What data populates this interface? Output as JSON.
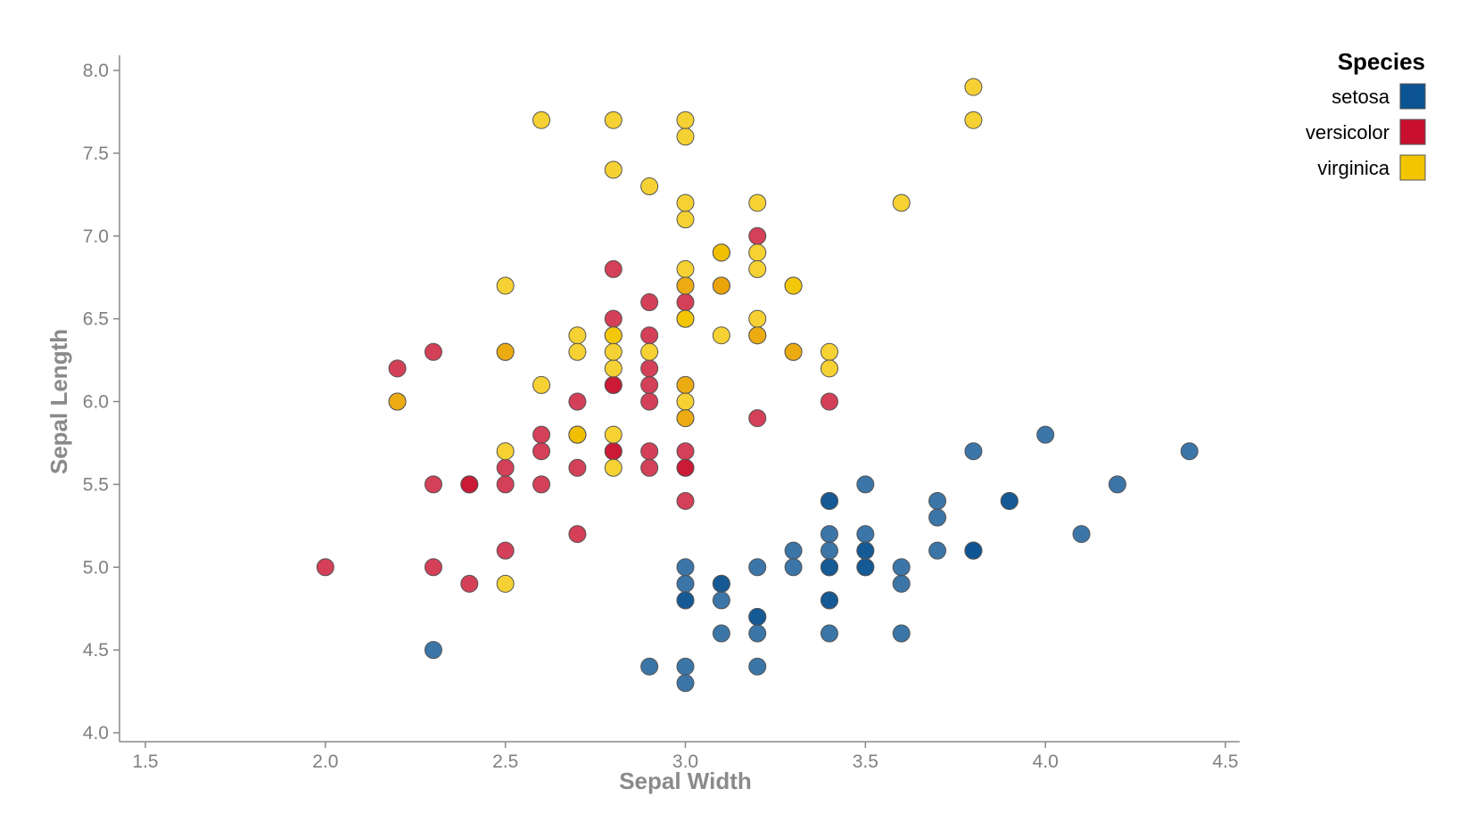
{
  "chart_data": {
    "type": "scatter",
    "title": "",
    "xlabel": "Sepal Width",
    "ylabel": "Sepal Length",
    "xlim": [
      1.5,
      4.5
    ],
    "ylim": [
      4.0,
      8.0
    ],
    "xticks": [
      "1.5",
      "2.0",
      "2.5",
      "3.0",
      "3.5",
      "4.0",
      "4.5"
    ],
    "yticks": [
      "4.0",
      "4.5",
      "5.0",
      "5.5",
      "6.0",
      "6.5",
      "7.0",
      "7.5",
      "8.0"
    ],
    "grid": false,
    "legend": {
      "title": "Species",
      "position": "top-right"
    },
    "series": [
      {
        "name": "setosa",
        "color": "#0b5391",
        "points": [
          [
            3.5,
            5.1
          ],
          [
            3.0,
            4.9
          ],
          [
            3.2,
            4.7
          ],
          [
            3.1,
            4.6
          ],
          [
            3.6,
            5.0
          ],
          [
            3.9,
            5.4
          ],
          [
            3.4,
            4.6
          ],
          [
            3.4,
            5.0
          ],
          [
            2.9,
            4.4
          ],
          [
            3.1,
            4.9
          ],
          [
            3.7,
            5.4
          ],
          [
            3.4,
            4.8
          ],
          [
            3.0,
            4.8
          ],
          [
            3.0,
            4.3
          ],
          [
            4.0,
            5.8
          ],
          [
            4.4,
            5.7
          ],
          [
            3.9,
            5.4
          ],
          [
            3.5,
            5.1
          ],
          [
            3.8,
            5.7
          ],
          [
            3.8,
            5.1
          ],
          [
            3.4,
            5.4
          ],
          [
            3.7,
            5.1
          ],
          [
            3.6,
            4.6
          ],
          [
            3.3,
            5.1
          ],
          [
            3.4,
            4.8
          ],
          [
            3.0,
            5.0
          ],
          [
            3.4,
            5.0
          ],
          [
            3.5,
            5.2
          ],
          [
            3.4,
            5.2
          ],
          [
            3.2,
            4.7
          ],
          [
            3.1,
            4.8
          ],
          [
            3.4,
            5.4
          ],
          [
            4.1,
            5.2
          ],
          [
            4.2,
            5.5
          ],
          [
            3.1,
            4.9
          ],
          [
            3.2,
            5.0
          ],
          [
            3.5,
            5.5
          ],
          [
            3.6,
            4.9
          ],
          [
            3.0,
            4.4
          ],
          [
            3.4,
            5.1
          ],
          [
            3.5,
            5.0
          ],
          [
            2.3,
            4.5
          ],
          [
            3.2,
            4.4
          ],
          [
            3.5,
            5.0
          ],
          [
            3.8,
            5.1
          ],
          [
            3.0,
            4.8
          ],
          [
            3.8,
            5.1
          ],
          [
            3.2,
            4.6
          ],
          [
            3.7,
            5.3
          ],
          [
            3.3,
            5.0
          ]
        ]
      },
      {
        "name": "versicolor",
        "color": "#c8102e",
        "points": [
          [
            3.2,
            7.0
          ],
          [
            3.2,
            6.4
          ],
          [
            3.1,
            6.9
          ],
          [
            2.3,
            5.5
          ],
          [
            2.8,
            6.5
          ],
          [
            2.8,
            5.7
          ],
          [
            3.3,
            6.3
          ],
          [
            2.4,
            4.9
          ],
          [
            2.9,
            6.6
          ],
          [
            2.7,
            5.2
          ],
          [
            2.0,
            5.0
          ],
          [
            3.0,
            5.9
          ],
          [
            2.2,
            6.0
          ],
          [
            2.9,
            6.1
          ],
          [
            2.9,
            5.6
          ],
          [
            3.1,
            6.7
          ],
          [
            3.0,
            5.6
          ],
          [
            2.7,
            5.8
          ],
          [
            2.2,
            6.2
          ],
          [
            2.5,
            5.6
          ],
          [
            3.2,
            5.9
          ],
          [
            2.8,
            6.1
          ],
          [
            2.5,
            6.3
          ],
          [
            2.8,
            6.1
          ],
          [
            2.9,
            6.4
          ],
          [
            3.0,
            6.6
          ],
          [
            2.8,
            6.8
          ],
          [
            3.0,
            6.7
          ],
          [
            2.9,
            6.0
          ],
          [
            2.6,
            5.7
          ],
          [
            2.4,
            5.5
          ],
          [
            2.4,
            5.5
          ],
          [
            2.7,
            5.8
          ],
          [
            2.7,
            6.0
          ],
          [
            3.0,
            5.4
          ],
          [
            3.4,
            6.0
          ],
          [
            3.1,
            6.7
          ],
          [
            2.3,
            6.3
          ],
          [
            3.0,
            5.6
          ],
          [
            2.5,
            5.5
          ],
          [
            2.6,
            5.5
          ],
          [
            3.0,
            6.1
          ],
          [
            2.6,
            5.8
          ],
          [
            2.3,
            5.0
          ],
          [
            2.7,
            5.6
          ],
          [
            3.0,
            5.7
          ],
          [
            2.9,
            5.7
          ],
          [
            2.9,
            6.2
          ],
          [
            2.5,
            5.1
          ],
          [
            2.8,
            5.7
          ]
        ]
      },
      {
        "name": "virginica",
        "color": "#f2c500",
        "points": [
          [
            3.3,
            6.3
          ],
          [
            2.7,
            5.8
          ],
          [
            3.0,
            7.1
          ],
          [
            2.9,
            6.3
          ],
          [
            3.0,
            6.5
          ],
          [
            3.0,
            7.6
          ],
          [
            2.5,
            4.9
          ],
          [
            2.9,
            7.3
          ],
          [
            2.5,
            6.7
          ],
          [
            3.6,
            7.2
          ],
          [
            3.2,
            6.5
          ],
          [
            2.7,
            6.4
          ],
          [
            3.0,
            6.8
          ],
          [
            2.5,
            5.7
          ],
          [
            2.8,
            5.8
          ],
          [
            3.2,
            6.4
          ],
          [
            3.0,
            6.5
          ],
          [
            3.8,
            7.7
          ],
          [
            2.6,
            7.7
          ],
          [
            2.2,
            6.0
          ],
          [
            3.2,
            6.9
          ],
          [
            2.8,
            5.6
          ],
          [
            2.8,
            7.7
          ],
          [
            2.7,
            6.3
          ],
          [
            3.3,
            6.7
          ],
          [
            3.2,
            7.2
          ],
          [
            2.8,
            6.2
          ],
          [
            3.0,
            6.1
          ],
          [
            2.8,
            6.4
          ],
          [
            3.0,
            7.2
          ],
          [
            2.8,
            7.4
          ],
          [
            3.8,
            7.9
          ],
          [
            2.8,
            6.4
          ],
          [
            2.8,
            6.3
          ],
          [
            2.6,
            6.1
          ],
          [
            3.0,
            7.7
          ],
          [
            3.4,
            6.3
          ],
          [
            3.1,
            6.4
          ],
          [
            3.0,
            6.0
          ],
          [
            3.1,
            6.9
          ],
          [
            3.1,
            6.7
          ],
          [
            3.1,
            6.9
          ],
          [
            2.7,
            5.8
          ],
          [
            3.2,
            6.8
          ],
          [
            3.3,
            6.7
          ],
          [
            3.0,
            6.7
          ],
          [
            2.5,
            6.3
          ],
          [
            3.0,
            6.5
          ],
          [
            3.4,
            6.2
          ],
          [
            3.0,
            5.9
          ]
        ]
      }
    ]
  }
}
